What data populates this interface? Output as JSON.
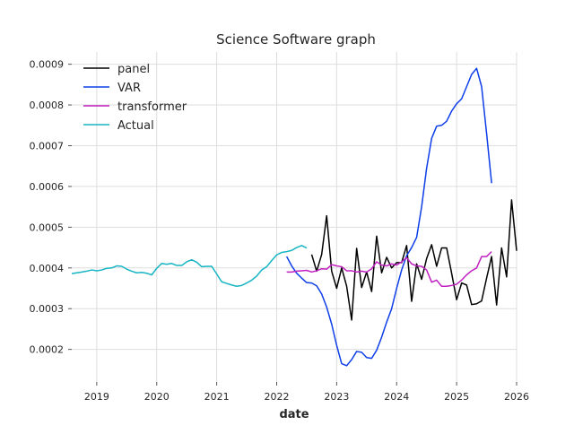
{
  "chart_data": {
    "type": "line",
    "title": "Science Software graph",
    "xlabel": "date",
    "ylabel": "",
    "x_type": "date",
    "xlim": [
      "2018-08-01",
      "2026-01-01"
    ],
    "ylim": [
      0.00012,
      0.00093
    ],
    "x_ticks": [
      "2019",
      "2020",
      "2021",
      "2022",
      "2023",
      "2024",
      "2025",
      "2026"
    ],
    "y_ticks": [
      "0.0002",
      "0.0003",
      "0.0004",
      "0.0005",
      "0.0006",
      "0.0007",
      "0.0008",
      "0.0009"
    ],
    "grid": true,
    "legend_position": "upper-left",
    "series": [
      {
        "name": "panel",
        "color": "#000000",
        "x": [
          "2022-08",
          "2022-09",
          "2022-10",
          "2022-11",
          "2022-12",
          "2023-01",
          "2023-02",
          "2023-03",
          "2023-04",
          "2023-05",
          "2023-06",
          "2023-07",
          "2023-08",
          "2023-09",
          "2023-10",
          "2023-11",
          "2023-12",
          "2024-01",
          "2024-02",
          "2024-03",
          "2024-04",
          "2024-05",
          "2024-06",
          "2024-07",
          "2024-08",
          "2024-09",
          "2024-10",
          "2024-11",
          "2024-12",
          "2025-01",
          "2025-02",
          "2025-03",
          "2025-04",
          "2025-05",
          "2025-06",
          "2025-07",
          "2025-08",
          "2025-09",
          "2025-10",
          "2025-11",
          "2025-12",
          "2026-01"
        ],
        "y": [
          0.000433,
          0.000392,
          0.000433,
          0.000528,
          0.000392,
          0.00035,
          0.0004,
          0.000355,
          0.000272,
          0.000448,
          0.000352,
          0.00039,
          0.000342,
          0.000478,
          0.000388,
          0.000426,
          0.0004,
          0.000413,
          0.000413,
          0.000455,
          0.000318,
          0.00041,
          0.000372,
          0.000423,
          0.000457,
          0.000404,
          0.000449,
          0.000449,
          0.000387,
          0.000322,
          0.000363,
          0.000358,
          0.00031,
          0.000312,
          0.000319,
          0.000375,
          0.000428,
          0.000309,
          0.000449,
          0.000378,
          0.000567,
          0.000442
        ]
      },
      {
        "name": "VAR",
        "color": "#0d3ee8",
        "x": [
          "2022-03",
          "2022-04",
          "2022-05",
          "2022-06",
          "2022-07",
          "2022-08",
          "2022-09",
          "2022-10",
          "2022-11",
          "2022-12",
          "2023-01",
          "2023-02",
          "2023-03",
          "2023-04",
          "2023-05",
          "2023-06",
          "2023-07",
          "2023-08",
          "2023-09",
          "2023-10",
          "2023-11",
          "2023-12",
          "2024-01",
          "2024-02",
          "2024-03",
          "2024-04",
          "2024-05",
          "2024-06",
          "2024-07",
          "2024-08",
          "2024-09",
          "2024-10",
          "2024-11",
          "2024-12",
          "2025-01",
          "2025-02",
          "2025-03",
          "2025-04",
          "2025-05",
          "2025-06",
          "2025-07",
          "2025-08"
        ],
        "y": [
          0.000428,
          0.000405,
          0.000387,
          0.000375,
          0.000364,
          0.000363,
          0.000356,
          0.000336,
          0.000304,
          0.000262,
          0.00021,
          0.000165,
          0.00016,
          0.000175,
          0.000195,
          0.000193,
          0.00018,
          0.000178,
          0.000198,
          0.00023,
          0.000267,
          0.0003,
          0.00035,
          0.000395,
          0.00043,
          0.00045,
          0.000475,
          0.00055,
          0.000645,
          0.000718,
          0.000748,
          0.00075,
          0.00076,
          0.000785,
          0.000803,
          0.000815,
          0.000845,
          0.000875,
          0.00089,
          0.000845,
          0.00073,
          0.000608
        ]
      },
      {
        "name": "transformer",
        "color": "#c020c0",
        "x": [
          "2022-03",
          "2022-04",
          "2022-05",
          "2022-06",
          "2022-07",
          "2022-08",
          "2022-09",
          "2022-10",
          "2022-11",
          "2022-12",
          "2023-01",
          "2023-02",
          "2023-03",
          "2023-04",
          "2023-05",
          "2023-06",
          "2023-07",
          "2023-08",
          "2023-09",
          "2023-10",
          "2023-11",
          "2023-12",
          "2024-01",
          "2024-02",
          "2024-03",
          "2024-04",
          "2024-05",
          "2024-06",
          "2024-07",
          "2024-08",
          "2024-09",
          "2024-10",
          "2024-11",
          "2024-12",
          "2025-01",
          "2025-02",
          "2025-03",
          "2025-04",
          "2025-05",
          "2025-06",
          "2025-07",
          "2025-08"
        ],
        "y": [
          0.00039,
          0.00039,
          0.000392,
          0.000393,
          0.000394,
          0.00039,
          0.000393,
          0.000398,
          0.000397,
          0.000408,
          0.000405,
          0.000403,
          0.000393,
          0.000393,
          0.00039,
          0.000392,
          0.00039,
          0.000398,
          0.000415,
          0.000407,
          0.000405,
          0.00041,
          0.000407,
          0.000415,
          0.000425,
          0.00041,
          0.000405,
          0.000404,
          0.000395,
          0.000365,
          0.00037,
          0.000355,
          0.000355,
          0.000357,
          0.00036,
          0.00037,
          0.000383,
          0.000393,
          0.0004,
          0.000428,
          0.000428,
          0.00044
        ]
      },
      {
        "name": "Actual",
        "color": "#17b5c4",
        "x": [
          "2018-08",
          "2018-09",
          "2018-10",
          "2018-11",
          "2018-12",
          "2019-01",
          "2019-02",
          "2019-03",
          "2019-04",
          "2019-05",
          "2019-06",
          "2019-07",
          "2019-08",
          "2019-09",
          "2019-10",
          "2019-11",
          "2019-12",
          "2020-01",
          "2020-02",
          "2020-03",
          "2020-04",
          "2020-05",
          "2020-06",
          "2020-07",
          "2020-08",
          "2020-09",
          "2020-10",
          "2020-11",
          "2020-12",
          "2021-01",
          "2021-02",
          "2021-03",
          "2021-04",
          "2021-05",
          "2021-06",
          "2021-07",
          "2021-08",
          "2021-09",
          "2021-10",
          "2021-11",
          "2021-12",
          "2022-01",
          "2022-02",
          "2022-03",
          "2022-04",
          "2022-05",
          "2022-06",
          "2022-07"
        ],
        "y": [
          0.000386,
          0.000388,
          0.00039,
          0.000392,
          0.000395,
          0.000393,
          0.000395,
          0.000399,
          0.0004,
          0.000405,
          0.000404,
          0.000397,
          0.000392,
          0.000388,
          0.000389,
          0.000387,
          0.000383,
          0.000399,
          0.000411,
          0.000409,
          0.000411,
          0.000406,
          0.000406,
          0.000415,
          0.00042,
          0.000414,
          0.000403,
          0.000404,
          0.000404,
          0.000385,
          0.000366,
          0.000362,
          0.000358,
          0.000355,
          0.000357,
          0.000363,
          0.00037,
          0.00038,
          0.000395,
          0.000403,
          0.000418,
          0.000432,
          0.000438,
          0.00044,
          0.000443,
          0.00045,
          0.000455,
          0.000449
        ]
      }
    ]
  }
}
